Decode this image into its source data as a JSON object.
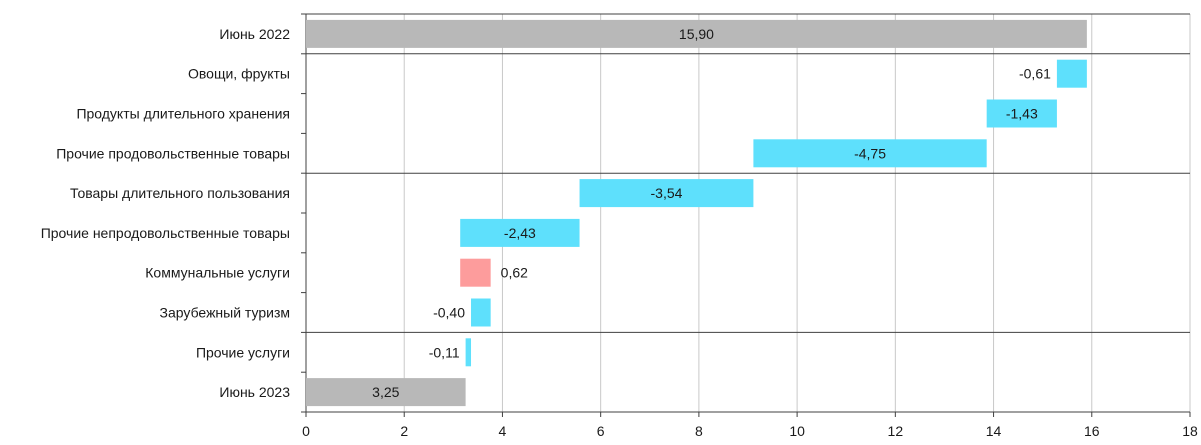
{
  "chart_data": {
    "type": "bar",
    "subtype": "waterfall-horizontal",
    "title": "",
    "xlabel": "",
    "ylabel": "",
    "xlim": [
      0,
      18
    ],
    "x_ticks": [
      "0",
      "2",
      "4",
      "6",
      "8",
      "10",
      "12",
      "14",
      "16",
      "18"
    ],
    "grid": "vertical",
    "categories": [
      "Июнь 2022",
      "Овощи, фрукты",
      "Продукты длительного хранения",
      "Прочие продовольственные товары",
      "Товары длительного пользования",
      "Прочие непродовольственные товары",
      "Коммунальные услуги",
      "Зарубежный туризм",
      "Прочие услуги",
      "Июнь 2023"
    ],
    "values": [
      15.9,
      -0.61,
      -1.43,
      -4.75,
      -3.54,
      -2.43,
      0.62,
      -0.4,
      -0.11,
      3.25
    ],
    "value_labels": [
      "15,90",
      "-0,61",
      "-1,43",
      "-4,75",
      "-3,54",
      "-2,43",
      "0,62",
      "-0,40",
      "-0,11",
      "3,25"
    ],
    "bar_kind": [
      "total",
      "delta",
      "delta",
      "delta",
      "delta",
      "delta",
      "delta",
      "delta",
      "delta",
      "total"
    ],
    "colors": {
      "total": "#b8b8b8",
      "decrease": "#5ee0fc",
      "increase": "#fd9c9c",
      "grid": "#c8c8c8",
      "axis": "#404040",
      "text": "#1a1a1a"
    }
  }
}
